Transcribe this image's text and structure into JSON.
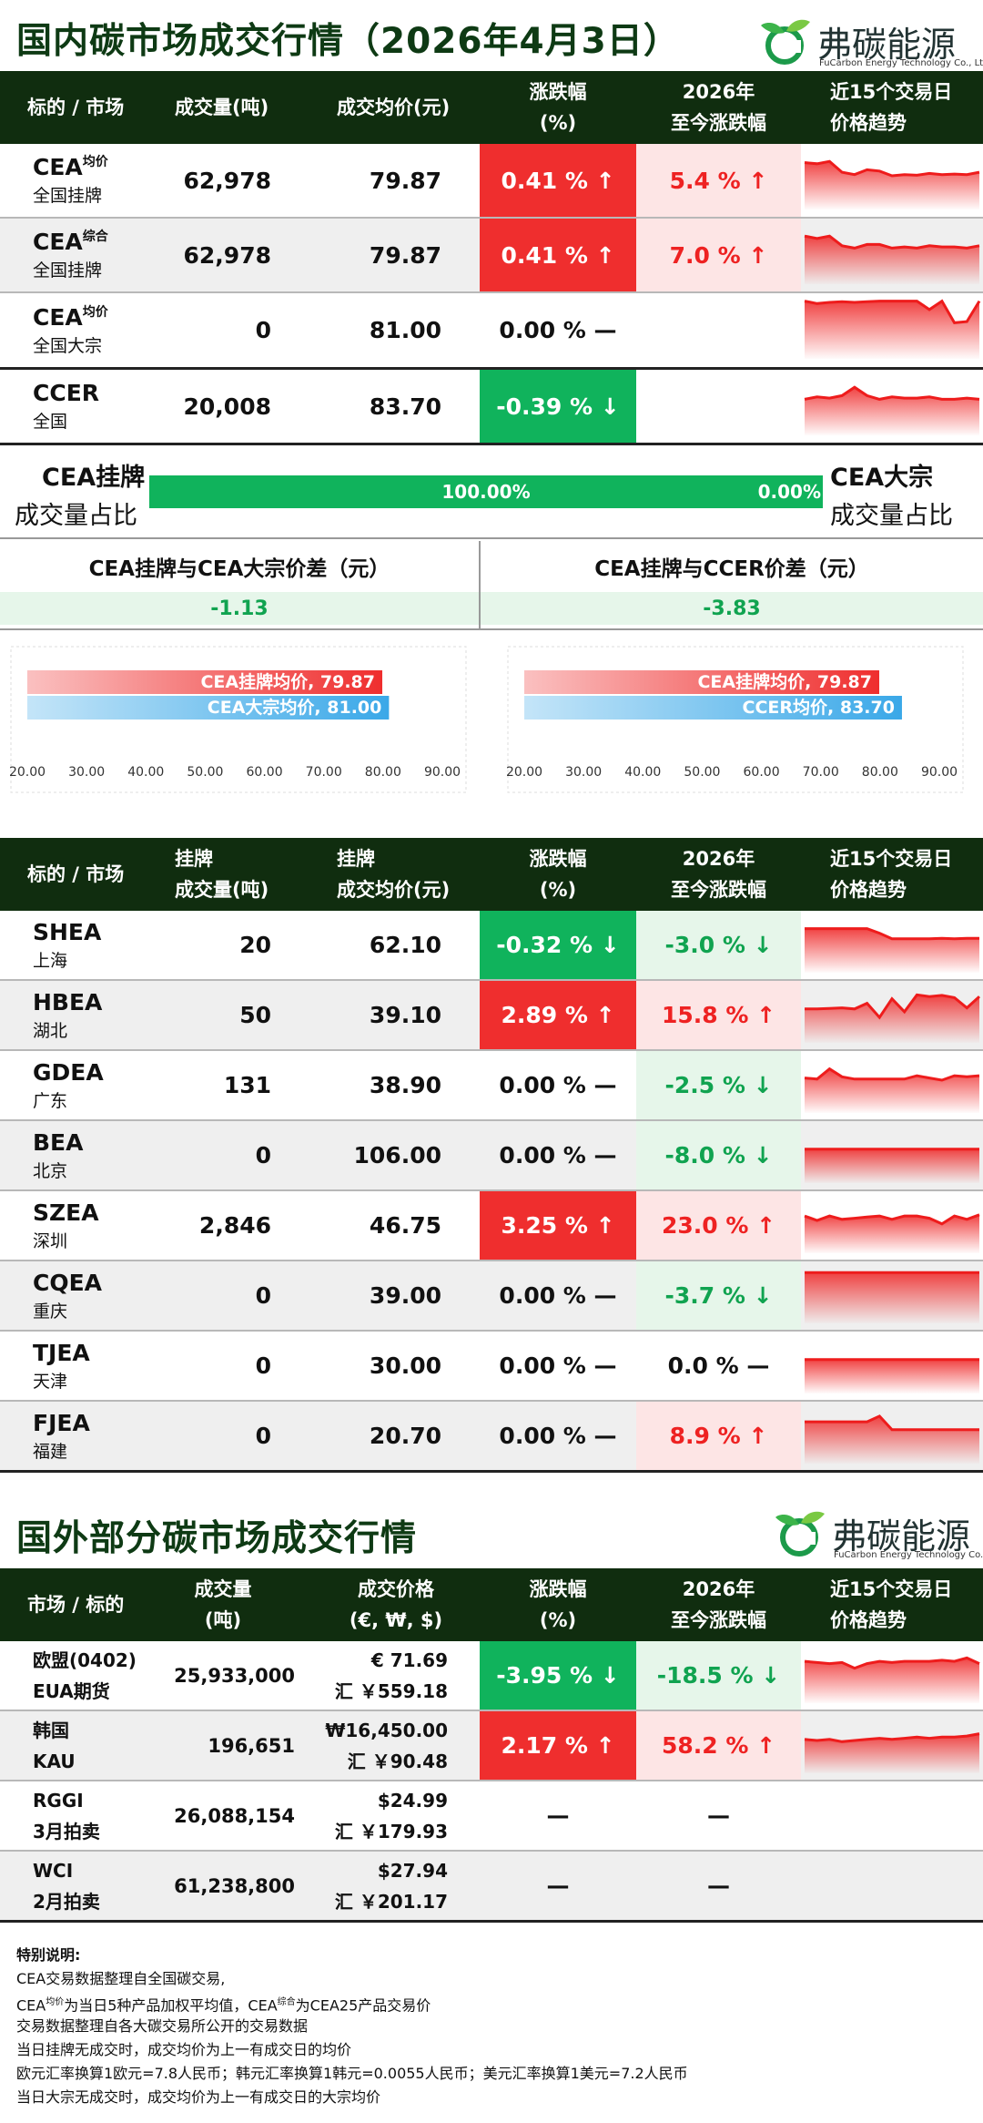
{
  "domestic": {
    "title": "国内碳市场成交行情（2026年4月3日）",
    "brand": {
      "name": "弗碳能源",
      "name_en": "FuCarbon Energy Technology Co., Ltd"
    },
    "headers": {
      "instrument": "标的 / 市场",
      "volume": "成交量(吨)",
      "price": "成交均价(元)",
      "change": [
        "涨跌幅",
        "(%)"
      ],
      "ytd": [
        "2026年",
        "至今涨跌幅"
      ],
      "trend": [
        "近15个交易日",
        "价格趋势"
      ]
    },
    "rows": [
      {
        "name": "CEA",
        "sup": "均价",
        "market": "全国挂牌",
        "volume": "62,978",
        "price": "79.87",
        "change": "0.41 % ↑",
        "dir": "up",
        "ytd": "5.4 % ↑",
        "ytd_dir": "up",
        "trend": [
          0.78,
          0.76,
          0.8,
          0.62,
          0.58,
          0.66,
          0.64,
          0.56,
          0.58,
          0.57,
          0.6,
          0.58,
          0.59,
          0.58,
          0.62
        ]
      },
      {
        "name": "CEA",
        "sup": "综合",
        "market": "全国挂牌",
        "volume": "62,978",
        "price": "79.87",
        "change": "0.41 % ↑",
        "dir": "up",
        "ytd": "7.0 % ↑",
        "ytd_dir": "up",
        "trend": [
          0.8,
          0.76,
          0.8,
          0.64,
          0.6,
          0.66,
          0.66,
          0.6,
          0.62,
          0.6,
          0.64,
          0.62,
          0.62,
          0.6,
          0.64
        ]
      },
      {
        "name": "CEA",
        "sup": "均价",
        "market": "全国大宗",
        "volume": "0",
        "price": "81.00",
        "change": "0.00 % —",
        "dir": "flat",
        "ytd": "",
        "ytd_dir": "",
        "trend": [
          0.96,
          0.92,
          0.94,
          0.95,
          0.94,
          0.95,
          0.96,
          0.96,
          0.96,
          0.96,
          0.82,
          0.96,
          0.6,
          0.62,
          0.96
        ]
      },
      {
        "name": "CCER",
        "sup": "",
        "market": "全国",
        "volume": "20,008",
        "price": "83.70",
        "change": "-0.39 % ↓",
        "dir": "dn",
        "ytd": "",
        "ytd_dir": "",
        "trend": [
          0.6,
          0.64,
          0.62,
          0.66,
          0.8,
          0.66,
          0.6,
          0.64,
          0.62,
          0.62,
          0.64,
          0.6,
          0.6,
          0.62,
          0.6
        ]
      }
    ],
    "share": {
      "left_title": "CEA挂牌",
      "left_sub": "成交量占比",
      "right_title": "CEA大宗",
      "right_sub": "成交量占比",
      "left_pct": 100.0,
      "left_label": "100.00%",
      "right_label": "0.00%"
    },
    "diffs": [
      {
        "title": "CEA挂牌与CEA大宗价差（元）",
        "value": "-1.13"
      },
      {
        "title": "CEA挂牌与CCER价差（元）",
        "value": "-3.83"
      }
    ],
    "bar_charts": [
      {
        "bars": [
          {
            "label": "CEA挂牌均价, 79.87",
            "value": 79.87,
            "color": "#ef2e2e"
          },
          {
            "label": "CEA大宗均价, 81.00",
            "value": 81.0,
            "color": "#3aa8e8"
          }
        ],
        "ticks": [
          "20.00",
          "30.00",
          "40.00",
          "50.00",
          "60.00",
          "70.00",
          "80.00",
          "90.00"
        ],
        "xmin": 20,
        "xmax": 90
      },
      {
        "bars": [
          {
            "label": "CEA挂牌均价, 79.87",
            "value": 79.87,
            "color": "#ef2e2e"
          },
          {
            "label": "CCER均价, 83.70",
            "value": 83.7,
            "color": "#3aa8e8"
          }
        ],
        "ticks": [
          "20.00",
          "30.00",
          "40.00",
          "50.00",
          "60.00",
          "70.00",
          "80.00",
          "90.00"
        ],
        "xmin": 20,
        "xmax": 90
      }
    ],
    "regional_headers": {
      "instrument": "标的 / 市场",
      "volume": [
        "挂牌",
        "成交量(吨)"
      ],
      "price": [
        "挂牌",
        "成交均价(元)"
      ],
      "change": [
        "涨跌幅",
        "(%)"
      ],
      "ytd": [
        "2026年",
        "至今涨跌幅"
      ],
      "trend": [
        "近15个交易日",
        "价格趋势"
      ]
    },
    "regional": [
      {
        "name": "SHEA",
        "market": "上海",
        "volume": "20",
        "price": "62.10",
        "change": "-0.32 % ↓",
        "dir": "dn",
        "ytd": "-3.0 % ↓",
        "ytd_dir": "dn",
        "trend": [
          0.78,
          0.78,
          0.78,
          0.78,
          0.78,
          0.78,
          0.7,
          0.6,
          0.6,
          0.6,
          0.6,
          0.61,
          0.6,
          0.61,
          0.61
        ]
      },
      {
        "name": "HBEA",
        "market": "湖北",
        "volume": "50",
        "price": "39.10",
        "change": "2.89 % ↑",
        "dir": "up",
        "ytd": "15.8 % ↑",
        "ytd_dir": "up",
        "trend": [
          0.6,
          0.6,
          0.61,
          0.62,
          0.6,
          0.7,
          0.45,
          0.78,
          0.55,
          0.85,
          0.82,
          0.84,
          0.8,
          0.62,
          0.82
        ]
      },
      {
        "name": "GDEA",
        "market": "广东",
        "volume": "131",
        "price": "38.90",
        "change": "0.00 % —",
        "dir": "flat",
        "ytd": "-2.5 % ↓",
        "ytd_dir": "dn",
        "trend": [
          0.62,
          0.6,
          0.78,
          0.64,
          0.6,
          0.6,
          0.6,
          0.6,
          0.6,
          0.66,
          0.62,
          0.58,
          0.66,
          0.64,
          0.66
        ]
      },
      {
        "name": "BEA",
        "market": "北京",
        "volume": "0",
        "price": "106.00",
        "change": "0.00 % —",
        "dir": "flat",
        "ytd": "-8.0 % ↓",
        "ytd_dir": "dn",
        "trend": [
          0.6,
          0.6,
          0.6,
          0.6,
          0.6,
          0.6,
          0.6,
          0.6,
          0.6,
          0.6,
          0.6,
          0.6,
          0.6,
          0.6,
          0.6
        ]
      },
      {
        "name": "SZEA",
        "market": "深圳",
        "volume": "2,846",
        "price": "46.75",
        "change": "3.25 % ↑",
        "dir": "up",
        "ytd": "23.0 % ↑",
        "ytd_dir": "up",
        "trend": [
          0.66,
          0.58,
          0.66,
          0.6,
          0.62,
          0.64,
          0.66,
          0.6,
          0.66,
          0.66,
          0.62,
          0.52,
          0.66,
          0.6,
          0.68
        ]
      },
      {
        "name": "CQEA",
        "market": "重庆",
        "volume": "0",
        "price": "39.00",
        "change": "0.00 % —",
        "dir": "flat",
        "ytd": "-3.7 % ↓",
        "ytd_dir": "dn",
        "trend": [
          0.9,
          0.9,
          0.9,
          0.9,
          0.9,
          0.9,
          0.9,
          0.9,
          0.9,
          0.9,
          0.9,
          0.9,
          0.9,
          0.9,
          0.9
        ]
      },
      {
        "name": "TJEA",
        "market": "天津",
        "volume": "0",
        "price": "30.00",
        "change": "0.00 % —",
        "dir": "flat",
        "ytd": "0.0 % —",
        "ytd_dir": "nc",
        "trend": [
          0.6,
          0.6,
          0.6,
          0.6,
          0.6,
          0.6,
          0.6,
          0.6,
          0.6,
          0.6,
          0.6,
          0.6,
          0.6,
          0.6,
          0.6
        ]
      },
      {
        "name": "FJEA",
        "market": "福建",
        "volume": "0",
        "price": "20.70",
        "change": "0.00 % —",
        "dir": "flat",
        "ytd": "8.9 % ↑",
        "ytd_dir": "up",
        "trend": [
          0.74,
          0.74,
          0.74,
          0.74,
          0.74,
          0.74,
          0.84,
          0.6,
          0.6,
          0.6,
          0.6,
          0.6,
          0.6,
          0.6,
          0.6
        ]
      }
    ]
  },
  "foreign": {
    "title": "国外部分碳市场成交行情",
    "headers": {
      "instrument": "市场 / 标的",
      "volume": [
        "成交量",
        "(吨)"
      ],
      "price": [
        "成交价格",
        "(€, ₩, $)"
      ],
      "change": [
        "涨跌幅",
        "(%)"
      ],
      "ytd": [
        "2026年",
        "至今涨跌幅"
      ],
      "trend": [
        "近15个交易日",
        "价格趋势"
      ]
    },
    "rows": [
      {
        "name": "欧盟(0402)",
        "market": "EUA期货",
        "volume": "25,933,000",
        "price": "€ 71.69",
        "cny": "汇 ￥559.18",
        "change": "-3.95 % ↓",
        "dir": "dn",
        "ytd": "-18.5 % ↓",
        "ytd_dir": "dn",
        "trend": [
          0.74,
          0.72,
          0.7,
          0.72,
          0.62,
          0.7,
          0.74,
          0.72,
          0.74,
          0.74,
          0.74,
          0.76,
          0.74,
          0.8,
          0.7
        ]
      },
      {
        "name": "韩国",
        "market": "KAU",
        "volume": "196,651",
        "price": "₩16,450.00",
        "cny": "汇 ￥90.48",
        "change": "2.17 % ↑",
        "dir": "up",
        "ytd": "58.2 % ↑",
        "ytd_dir": "up",
        "trend": [
          0.6,
          0.58,
          0.6,
          0.56,
          0.58,
          0.6,
          0.62,
          0.6,
          0.62,
          0.64,
          0.62,
          0.64,
          0.64,
          0.66,
          0.7
        ]
      },
      {
        "name": "RGGI",
        "market": "3月拍卖",
        "volume": "26,088,154",
        "price": "$24.99",
        "cny": "汇 ￥179.93",
        "change": "—",
        "dir": "none",
        "ytd": "—",
        "ytd_dir": "nc",
        "trend": []
      },
      {
        "name": "WCI",
        "market": "2月拍卖",
        "volume": "61,238,800",
        "price": "$27.94",
        "cny": "汇 ￥201.17",
        "change": "—",
        "dir": "none",
        "ytd": "—",
        "ytd_dir": "nc",
        "trend": []
      }
    ]
  },
  "notes": {
    "title": "特别说明:",
    "l1": "CEA交易数据整理自全国碳交易,",
    "l2_a": "CEA",
    "l2_sup1": "均价",
    "l2_b": "为当日5种产品加权平均值，CEA",
    "l2_sup2": "综合",
    "l2_c": "为CEA25产品交易价",
    "l3": "交易数据整理自各大碳交易所公开的交易数据",
    "l4": "当日挂牌无成交时，成交均价为上一有成交日的均价",
    "l5": "欧元汇率换算1欧元=7.8人民币；韩元汇率换算1韩元=0.0055人民币；美元汇率换算1美元=7.2人民币",
    "l6": "当日大宗无成交时，成交均价为上一有成交日的大宗均价"
  },
  "colors": {
    "up": "#ef2e2e",
    "down": "#10b35c",
    "header": "#102d0f",
    "title": "#0e3a14"
  }
}
